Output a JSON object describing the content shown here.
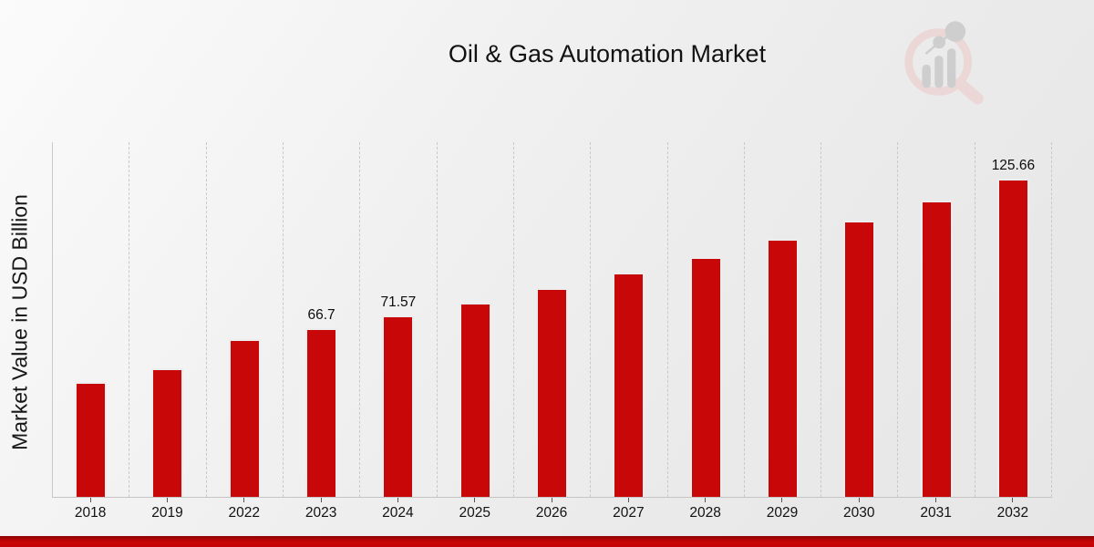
{
  "page": {
    "title": "Oil & Gas Automation Market"
  },
  "chart_data": {
    "type": "bar",
    "title": "Oil & Gas Automation Market",
    "xlabel": "",
    "ylabel": "Market Value in USD Billion",
    "categories": [
      "2018",
      "2019",
      "2022",
      "2023",
      "2024",
      "2025",
      "2026",
      "2027",
      "2028",
      "2029",
      "2030",
      "2031",
      "2032"
    ],
    "values": [
      45.4,
      50.7,
      62.2,
      66.7,
      71.57,
      76.8,
      82.4,
      88.4,
      94.8,
      101.8,
      109.2,
      117.1,
      125.66
    ],
    "data_labels": {
      "2023": "66.7",
      "2024": "71.57",
      "2032": "125.66"
    },
    "ylim": [
      0,
      140
    ],
    "grid": "vertical-dashed",
    "legend": "none",
    "bar_color": "#c80808",
    "accent_band_color": "#c90707"
  },
  "branding": {
    "logo_name": "magnifier-bar-chart-watermark",
    "ring_color": "#edd4d4",
    "glyph_color": "#c9c9cb"
  }
}
